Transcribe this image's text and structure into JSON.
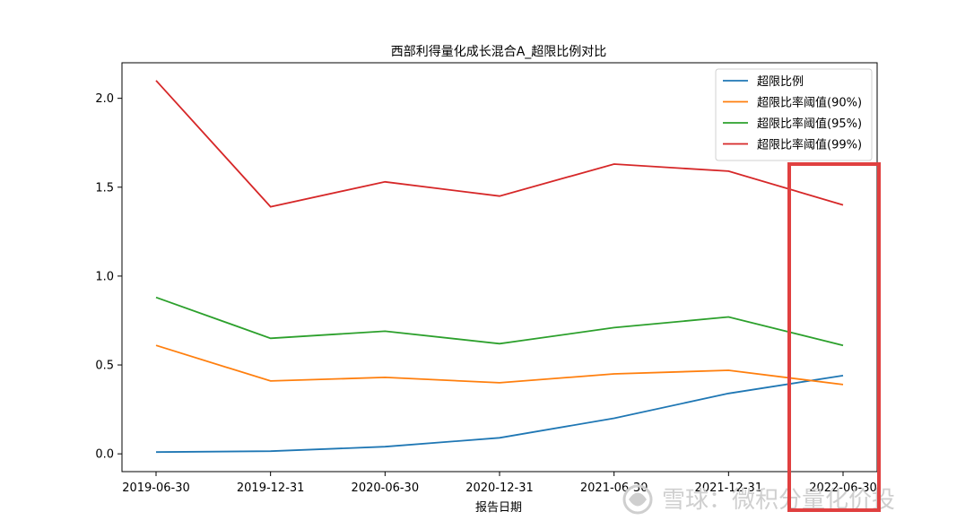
{
  "chart_data": {
    "type": "line",
    "title": "西部利得量化成长混合A_超限比例对比",
    "xlabel": "报告日期",
    "ylabel": "",
    "categories": [
      "2019-06-30",
      "2019-12-31",
      "2020-06-30",
      "2020-12-31",
      "2021-06-30",
      "2021-12-31",
      "2022-06-30"
    ],
    "ylim": [
      -0.1,
      2.2
    ],
    "yticks": [
      "0.0",
      "0.5",
      "1.0",
      "1.5",
      "2.0"
    ],
    "grid": false,
    "legend_position": "top-right",
    "series": [
      {
        "name": "超限比例",
        "color": "#1f77b4",
        "values": [
          0.01,
          0.015,
          0.04,
          0.09,
          0.2,
          0.34,
          0.44
        ]
      },
      {
        "name": "超限比率阈值(90%)",
        "color": "#ff7f0e",
        "values": [
          0.61,
          0.41,
          0.43,
          0.4,
          0.45,
          0.47,
          0.39
        ]
      },
      {
        "name": "超限比率阈值(95%)",
        "color": "#2ca02c",
        "values": [
          0.88,
          0.65,
          0.69,
          0.62,
          0.71,
          0.77,
          0.61
        ]
      },
      {
        "name": "超限比率阈值(99%)",
        "color": "#d62728",
        "values": [
          2.1,
          1.39,
          1.53,
          1.45,
          1.63,
          1.59,
          1.4
        ]
      }
    ],
    "highlight_color": "#e04040"
  },
  "watermark": {
    "text": "雪球：微积分量化价投",
    "color": "#cfcfcf"
  }
}
